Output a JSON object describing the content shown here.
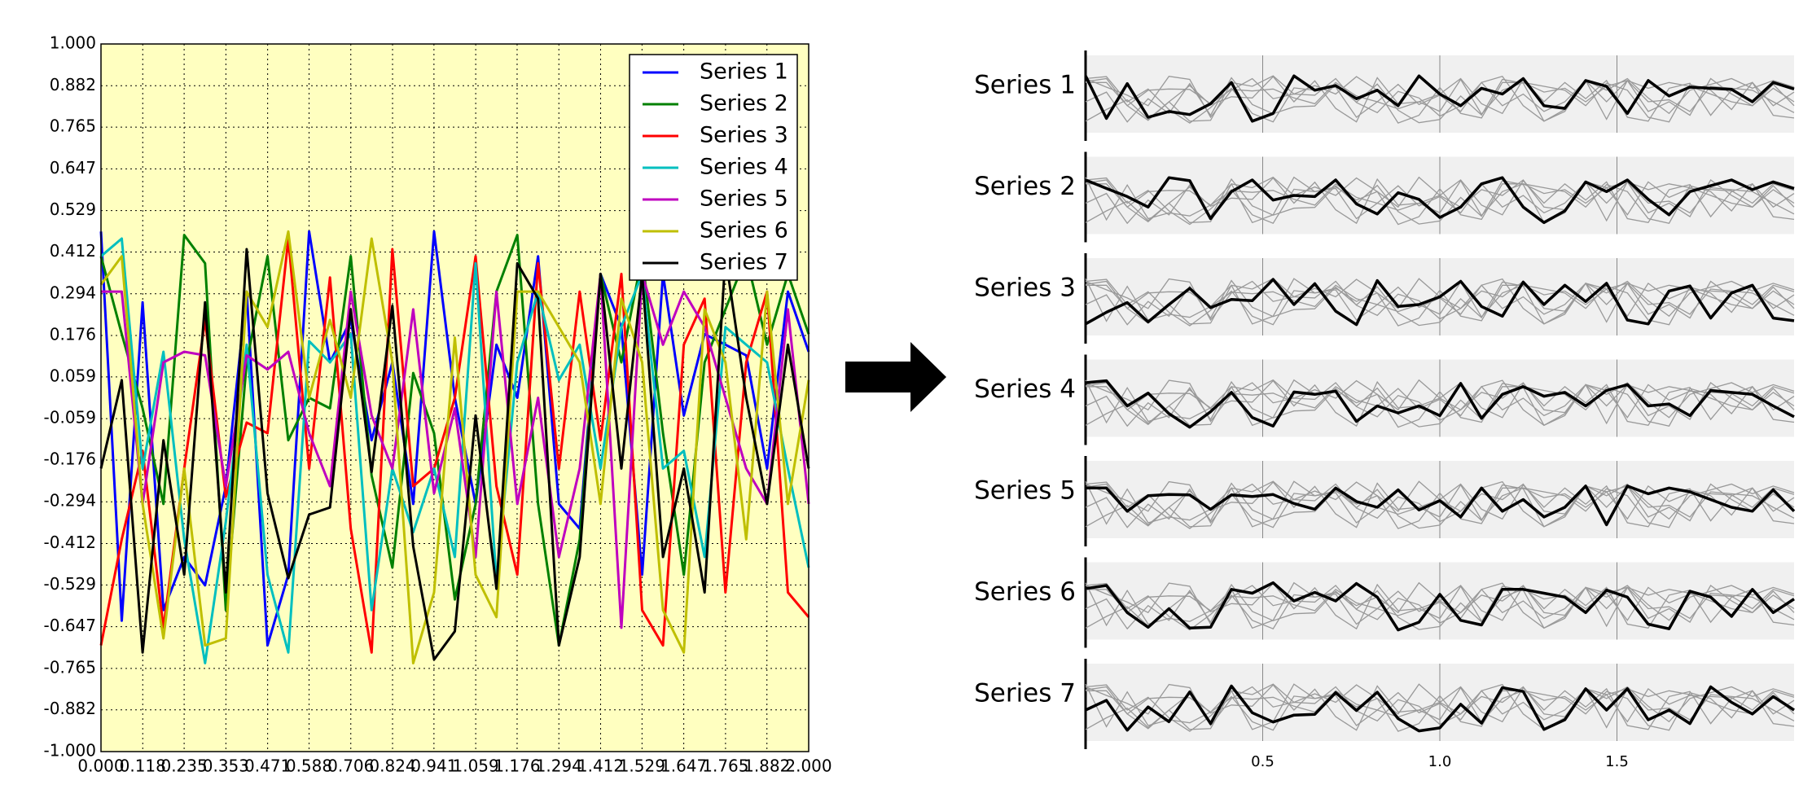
{
  "chart_data": [
    {
      "type": "line",
      "x": [
        0,
        0.0588,
        0.1176,
        0.1765,
        0.2353,
        0.2941,
        0.3529,
        0.4118,
        0.4706,
        0.5294,
        0.5882,
        0.6471,
        0.7059,
        0.7647,
        0.8235,
        0.8824,
        0.9412,
        1,
        1.0588,
        1.1176,
        1.1765,
        1.2353,
        1.2941,
        1.3529,
        1.4118,
        1.4706,
        1.5294,
        1.5882,
        1.6471,
        1.7059,
        1.7647,
        1.8235,
        1.8824,
        1.9412,
        2
      ],
      "series": [
        {
          "name": "Series 1",
          "color": "#0000ff",
          "values": [
            0.47,
            -0.63,
            0.27,
            -0.6,
            -0.45,
            -0.53,
            -0.25,
            0.3,
            -0.7,
            -0.5,
            0.47,
            0.1,
            0.22,
            -0.12,
            0.1,
            -0.3,
            0.47,
            0.0,
            -0.3,
            0.15,
            0.0,
            0.4,
            -0.3,
            -0.37,
            0.35,
            0.2,
            -0.5,
            0.35,
            -0.05,
            0.18,
            0.15,
            0.12,
            -0.2,
            0.3,
            0.13
          ]
        },
        {
          "name": "Series 2",
          "color": "#008000",
          "values": [
            0.4,
            0.18,
            -0.03,
            -0.3,
            0.46,
            0.38,
            -0.6,
            0.1,
            0.4,
            -0.12,
            0.0,
            -0.03,
            0.4,
            -0.22,
            -0.48,
            0.07,
            -0.1,
            -0.57,
            -0.3,
            0.3,
            0.46,
            -0.3,
            -0.7,
            -0.4,
            0.35,
            0.1,
            0.4,
            -0.1,
            -0.5,
            0.1,
            0.25,
            0.4,
            0.15,
            0.35,
            0.18
          ]
        },
        {
          "name": "Series 3",
          "color": "#ff0000",
          "values": [
            -0.7,
            -0.4,
            -0.15,
            -0.65,
            -0.2,
            0.22,
            -0.28,
            -0.07,
            -0.1,
            0.45,
            -0.2,
            0.34,
            -0.37,
            -0.72,
            0.42,
            -0.25,
            -0.2,
            0.0,
            0.4,
            -0.25,
            -0.5,
            0.38,
            -0.2,
            0.3,
            -0.12,
            0.35,
            -0.6,
            -0.7,
            0.15,
            0.28,
            -0.55,
            0.1,
            0.3,
            -0.55,
            -0.62
          ]
        },
        {
          "name": "Series 4",
          "color": "#00bfbf",
          "values": [
            0.4,
            0.45,
            -0.2,
            0.13,
            -0.4,
            -0.75,
            -0.35,
            0.15,
            -0.5,
            -0.72,
            0.16,
            0.1,
            0.18,
            -0.6,
            -0.2,
            -0.38,
            -0.2,
            -0.45,
            0.38,
            -0.52,
            0.1,
            0.3,
            0.05,
            0.15,
            -0.2,
            0.2,
            0.35,
            -0.2,
            -0.15,
            -0.45,
            0.2,
            0.15,
            0.1,
            -0.2,
            -0.48
          ]
        },
        {
          "name": "Series 5",
          "color": "#bf00bf",
          "values": [
            0.3,
            0.3,
            -0.3,
            0.1,
            0.13,
            0.12,
            -0.25,
            0.12,
            0.08,
            0.13,
            -0.1,
            -0.25,
            0.3,
            -0.05,
            -0.2,
            0.25,
            -0.27,
            -0.03,
            -0.45,
            0.3,
            -0.3,
            0.0,
            -0.45,
            -0.2,
            0.35,
            -0.65,
            0.35,
            0.15,
            0.3,
            0.2,
            0.0,
            -0.2,
            -0.3,
            0.25,
            -0.3
          ]
        },
        {
          "name": "Series 6",
          "color": "#bfbf00",
          "values": [
            0.32,
            0.4,
            -0.3,
            -0.68,
            -0.2,
            -0.7,
            -0.68,
            0.3,
            0.2,
            0.47,
            0.0,
            0.22,
            0.0,
            0.45,
            0.1,
            -0.75,
            -0.55,
            0.17,
            -0.5,
            -0.62,
            0.3,
            0.3,
            0.2,
            0.1,
            -0.3,
            0.28,
            0.1,
            -0.6,
            -0.72,
            0.25,
            0.1,
            -0.4,
            0.3,
            -0.3,
            0.05
          ]
        },
        {
          "name": "Series 7",
          "color": "#000000",
          "values": [
            -0.2,
            0.05,
            -0.72,
            -0.12,
            -0.5,
            0.27,
            -0.55,
            0.42,
            -0.27,
            -0.51,
            -0.33,
            -0.31,
            0.25,
            -0.21,
            0.26,
            -0.42,
            -0.74,
            -0.66,
            -0.05,
            -0.54,
            0.38,
            0.28,
            -0.7,
            -0.45,
            0.35,
            -0.2,
            0.35,
            -0.45,
            -0.2,
            -0.55,
            0.4,
            0.0,
            -0.3,
            0.15,
            -0.2
          ]
        }
      ],
      "xlim": [
        0,
        2
      ],
      "ylim": [
        -1,
        1
      ],
      "xticks": [
        {
          "value": 0,
          "label": "0.000"
        },
        {
          "value": 0.118,
          "label": "0.118"
        },
        {
          "value": 0.235,
          "label": "0.235"
        },
        {
          "value": 0.353,
          "label": "0.353"
        },
        {
          "value": 0.471,
          "label": "0.471"
        },
        {
          "value": 0.588,
          "label": "0.588"
        },
        {
          "value": 0.706,
          "label": "0.706"
        },
        {
          "value": 0.824,
          "label": "0.824"
        },
        {
          "value": 0.941,
          "label": "0.941"
        },
        {
          "value": 1.059,
          "label": "1.059"
        },
        {
          "value": 1.176,
          "label": "1.176"
        },
        {
          "value": 1.294,
          "label": "1.294"
        },
        {
          "value": 1.412,
          "label": "1.412"
        },
        {
          "value": 1.529,
          "label": "1.529"
        },
        {
          "value": 1.647,
          "label": "1.647"
        },
        {
          "value": 1.765,
          "label": "1.765"
        },
        {
          "value": 1.882,
          "label": "1.882"
        },
        {
          "value": 2,
          "label": "2.000"
        }
      ],
      "yticks": [
        {
          "value": -1,
          "label": "-1.000"
        },
        {
          "value": -0.882,
          "label": "-0.882"
        },
        {
          "value": -0.765,
          "label": "-0.765"
        },
        {
          "value": -0.647,
          "label": "-0.647"
        },
        {
          "value": -0.529,
          "label": "-0.529"
        },
        {
          "value": -0.412,
          "label": "-0.412"
        },
        {
          "value": -0.294,
          "label": "-0.294"
        },
        {
          "value": -0.176,
          "label": "-0.176"
        },
        {
          "value": -0.059,
          "label": "-0.059"
        },
        {
          "value": 0.059,
          "label": "0.059"
        },
        {
          "value": 0.176,
          "label": "0.176"
        },
        {
          "value": 0.294,
          "label": "0.294"
        },
        {
          "value": 0.412,
          "label": "0.412"
        },
        {
          "value": 0.529,
          "label": "0.529"
        },
        {
          "value": 0.647,
          "label": "0.647"
        },
        {
          "value": 0.765,
          "label": "0.765"
        },
        {
          "value": 0.882,
          "label": "0.882"
        },
        {
          "value": 1,
          "label": "1.000"
        }
      ],
      "grid": true,
      "legend": "upper-right",
      "background": "#ffffc0"
    },
    {
      "type": "small-multiples",
      "xlim": [
        0,
        2
      ],
      "ylim": [
        -1,
        1
      ],
      "xticks": [
        0.5,
        {
          "value": 1,
          "label": "1.0"
        },
        1.5
      ],
      "highlight_color": "#000000",
      "context_color": "#999999",
      "background": "#f0f0f0"
    }
  ]
}
